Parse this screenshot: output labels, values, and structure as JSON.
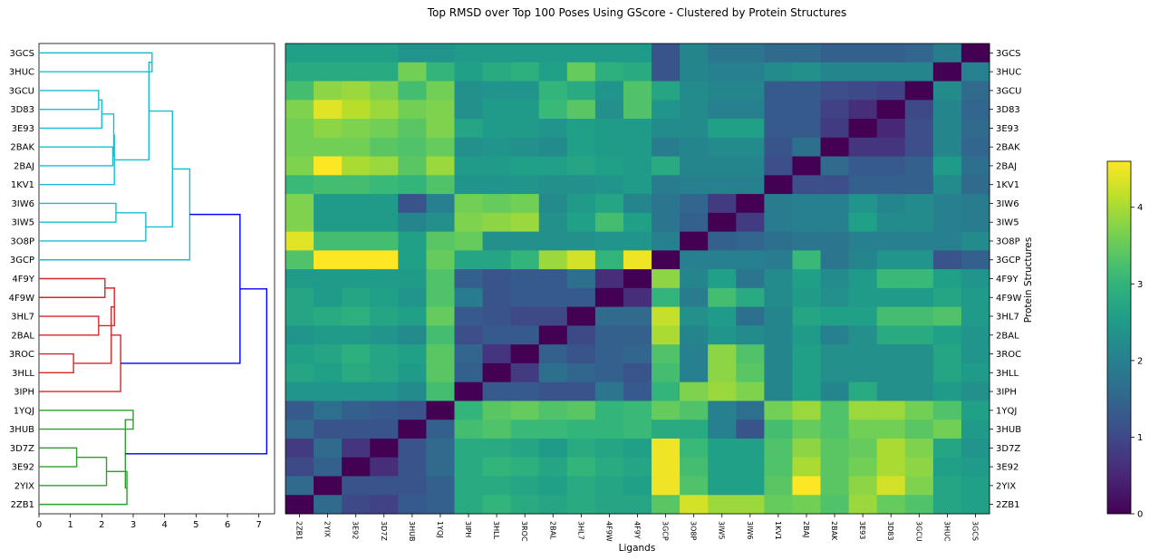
{
  "chart_data": [
    {
      "type": "dendrogram",
      "title": "Top RMSD over Top 100 Poses Using GScore - Clustered by Protein Structures",
      "leaves": [
        "3GCS",
        "3HUC",
        "3GCU",
        "3D83",
        "3E93",
        "2BAK",
        "2BAJ",
        "1KV1",
        "3IW6",
        "3IW5",
        "3O8P",
        "3GCP",
        "4F9Y",
        "4F9W",
        "3HL7",
        "2BAL",
        "3ROC",
        "3HLL",
        "3IPH",
        "1YQJ",
        "3HUB",
        "3D7Z",
        "3E92",
        "2YIX",
        "2ZB1"
      ],
      "x_ticks": [
        "0",
        "1",
        "2",
        "3",
        "4",
        "5",
        "6",
        "7"
      ],
      "xlim": [
        0,
        7.5
      ],
      "colors": {
        "cluster1": "#17becf",
        "cluster2": "#d62728",
        "cluster3": "#2ca02c",
        "root": "#0000ff"
      },
      "links": [
        {
          "a": 0,
          "b": 1,
          "h": 3.6,
          "c": "cluster1"
        },
        {
          "a": 2,
          "b": 3,
          "h": 1.9,
          "c": "cluster1"
        },
        {
          "a": "n2",
          "b": 4,
          "h": 2.0,
          "c": "cluster1"
        },
        {
          "a": 5,
          "b": 6,
          "h": 2.35,
          "c": "cluster1"
        },
        {
          "a": "n3",
          "b": "n4",
          "h": 2.38,
          "c": "cluster1"
        },
        {
          "a": "n5",
          "b": 7,
          "h": 2.4,
          "c": "cluster1"
        },
        {
          "a": "n1",
          "b": "n6",
          "h": 3.5,
          "c": "cluster1"
        },
        {
          "a": 8,
          "b": 9,
          "h": 2.45,
          "c": "cluster1"
        },
        {
          "a": "n8",
          "b": 10,
          "h": 3.4,
          "c": "cluster1"
        },
        {
          "a": "n7",
          "b": "n9",
          "h": 4.25,
          "c": "cluster1"
        },
        {
          "a": "n10",
          "b": 11,
          "h": 4.8,
          "c": "cluster1"
        },
        {
          "a": 12,
          "b": 13,
          "h": 2.1,
          "c": "cluster2"
        },
        {
          "a": 14,
          "b": 15,
          "h": 1.9,
          "c": "cluster2"
        },
        {
          "a": "n12",
          "b": "n13",
          "h": 2.4,
          "c": "cluster2"
        },
        {
          "a": 16,
          "b": 17,
          "h": 1.1,
          "c": "cluster2"
        },
        {
          "a": "n14",
          "b": "n15",
          "h": 2.3,
          "c": "cluster2"
        },
        {
          "a": "n16",
          "b": 18,
          "h": 2.6,
          "c": "cluster2"
        },
        {
          "a": "n11",
          "b": "n17",
          "h": 6.4,
          "c": "root"
        },
        {
          "a": 19,
          "b": 20,
          "h": 3.0,
          "c": "cluster3"
        },
        {
          "a": 21,
          "b": 22,
          "h": 1.2,
          "c": "cluster3"
        },
        {
          "a": "n20",
          "b": 23,
          "h": 2.15,
          "c": "cluster3"
        },
        {
          "a": "n21",
          "b": 24,
          "h": 2.8,
          "c": "cluster3"
        },
        {
          "a": "n19",
          "b": "n22",
          "h": 2.75,
          "c": "cluster3"
        },
        {
          "a": "n18",
          "b": "n23",
          "h": 7.25,
          "c": "root"
        }
      ]
    },
    {
      "type": "heatmap",
      "ylabel": "Protein Structures",
      "xlabel": "Ligands",
      "y_categories": [
        "3GCS",
        "3HUC",
        "3GCU",
        "3D83",
        "3E93",
        "2BAK",
        "2BAJ",
        "1KV1",
        "3IW6",
        "3IW5",
        "3O8P",
        "3GCP",
        "4F9Y",
        "4F9W",
        "3HL7",
        "2BAL",
        "3ROC",
        "3HLL",
        "3IPH",
        "1YQJ",
        "3HUB",
        "3D7Z",
        "3E92",
        "2YIX",
        "2ZB1"
      ],
      "x_categories": [
        "2ZB1",
        "2YIX",
        "3E92",
        "3D7Z",
        "3HUB",
        "1YQJ",
        "3IPH",
        "3HLL",
        "3ROC",
        "2BAL",
        "3HL7",
        "4F9W",
        "4F9Y",
        "3GCP",
        "3O8P",
        "3IW5",
        "3IW6",
        "1KV1",
        "2BAJ",
        "2BAK",
        "3E93",
        "3D83",
        "3GCU",
        "3HUC",
        "3GCS"
      ],
      "values": [
        [
          2.6,
          2.6,
          2.6,
          2.6,
          2.4,
          2.4,
          2.5,
          2.5,
          2.5,
          2.5,
          2.5,
          2.5,
          2.5,
          1.2,
          2.1,
          1.8,
          1.8,
          1.6,
          1.6,
          1.4,
          1.4,
          1.4,
          1.5,
          1.9,
          0.0
        ],
        [
          2.8,
          2.8,
          2.8,
          2.8,
          3.6,
          3.0,
          2.6,
          2.8,
          2.9,
          2.6,
          3.5,
          2.9,
          2.8,
          1.2,
          2.1,
          2.0,
          2.0,
          2.2,
          2.3,
          2.1,
          2.1,
          2.1,
          2.1,
          0.0,
          2.0
        ],
        [
          3.2,
          3.8,
          3.9,
          3.7,
          3.2,
          3.6,
          2.3,
          2.4,
          2.4,
          3.0,
          2.8,
          2.4,
          3.3,
          2.7,
          2.2,
          2.1,
          2.1,
          1.3,
          1.3,
          1.1,
          1.0,
          0.9,
          0.0,
          2.2,
          1.6
        ],
        [
          3.7,
          4.4,
          4.1,
          3.9,
          3.6,
          3.7,
          2.3,
          2.5,
          2.5,
          3.1,
          3.4,
          2.3,
          3.3,
          2.4,
          2.2,
          2.0,
          2.0,
          1.3,
          1.3,
          0.9,
          0.6,
          0.0,
          1.0,
          2.1,
          1.5
        ],
        [
          3.6,
          3.8,
          3.7,
          3.6,
          3.4,
          3.7,
          2.7,
          2.5,
          2.5,
          2.4,
          2.6,
          2.5,
          2.5,
          2.2,
          2.2,
          2.6,
          2.6,
          1.3,
          1.3,
          0.8,
          0.0,
          0.5,
          1.1,
          2.1,
          1.6
        ],
        [
          3.6,
          3.6,
          3.6,
          3.4,
          3.3,
          3.5,
          2.3,
          2.4,
          2.3,
          2.2,
          2.6,
          2.5,
          2.5,
          1.9,
          2.1,
          2.2,
          2.2,
          1.2,
          1.7,
          0.0,
          0.7,
          0.7,
          1.1,
          2.1,
          1.5
        ],
        [
          3.7,
          4.6,
          4.0,
          3.9,
          3.4,
          3.9,
          2.5,
          2.5,
          2.6,
          2.6,
          2.7,
          2.6,
          2.5,
          2.8,
          2.1,
          2.1,
          2.1,
          1.1,
          0.0,
          1.6,
          1.3,
          1.3,
          1.4,
          2.5,
          1.7
        ],
        [
          3.1,
          3.2,
          3.2,
          3.1,
          3.0,
          3.3,
          2.4,
          2.4,
          2.4,
          2.3,
          2.3,
          2.4,
          2.5,
          1.9,
          2.0,
          2.0,
          2.0,
          0.0,
          1.1,
          1.1,
          1.4,
          1.4,
          1.4,
          2.2,
          1.6
        ],
        [
          3.7,
          2.5,
          2.5,
          2.5,
          1.2,
          2.0,
          3.6,
          3.5,
          3.6,
          2.2,
          2.5,
          2.7,
          2.1,
          1.8,
          1.5,
          0.8,
          0.0,
          1.9,
          2.0,
          2.0,
          2.4,
          2.1,
          2.2,
          2.0,
          1.9
        ],
        [
          3.7,
          2.5,
          2.5,
          2.5,
          2.1,
          2.3,
          3.7,
          3.8,
          3.9,
          2.3,
          2.6,
          3.2,
          2.6,
          1.8,
          1.4,
          0.0,
          0.8,
          1.9,
          2.0,
          2.0,
          2.6,
          2.2,
          2.2,
          2.0,
          1.9
        ],
        [
          4.4,
          3.2,
          3.2,
          3.2,
          2.6,
          3.4,
          3.5,
          2.3,
          2.3,
          2.3,
          2.3,
          2.4,
          2.4,
          2.0,
          0.0,
          1.4,
          1.5,
          1.7,
          1.8,
          1.8,
          2.0,
          2.0,
          2.0,
          2.0,
          2.2
        ],
        [
          3.3,
          4.6,
          4.6,
          4.6,
          2.6,
          3.5,
          2.7,
          2.7,
          3.0,
          3.9,
          4.3,
          3.0,
          4.5,
          0.0,
          2.0,
          2.0,
          2.0,
          1.9,
          3.1,
          1.8,
          2.1,
          2.4,
          2.4,
          1.2,
          1.4
        ],
        [
          2.5,
          2.5,
          2.5,
          2.5,
          2.5,
          3.3,
          1.4,
          1.2,
          1.3,
          1.3,
          1.7,
          0.6,
          0.0,
          3.8,
          2.1,
          2.6,
          1.8,
          2.2,
          2.6,
          2.2,
          2.5,
          3.1,
          3.1,
          2.6,
          2.4
        ],
        [
          2.7,
          2.5,
          2.7,
          2.6,
          2.4,
          3.3,
          1.9,
          1.2,
          1.3,
          1.3,
          1.3,
          0.0,
          0.6,
          3.0,
          1.9,
          3.2,
          2.8,
          2.2,
          2.5,
          2.3,
          2.5,
          2.5,
          2.5,
          2.7,
          2.5
        ],
        [
          2.7,
          2.8,
          2.9,
          2.7,
          2.6,
          3.5,
          1.3,
          1.2,
          1.0,
          1.0,
          0.0,
          1.6,
          1.6,
          4.2,
          2.3,
          2.5,
          1.7,
          2.1,
          2.7,
          2.6,
          2.6,
          3.2,
          3.2,
          3.3,
          2.5
        ],
        [
          2.4,
          2.5,
          2.5,
          2.4,
          2.2,
          3.2,
          1.1,
          1.3,
          1.3,
          0.0,
          1.0,
          1.4,
          1.4,
          4.0,
          2.1,
          2.4,
          2.2,
          2.1,
          2.5,
          2.0,
          2.3,
          2.8,
          2.8,
          2.6,
          2.4
        ],
        [
          2.6,
          2.7,
          2.9,
          2.7,
          2.6,
          3.4,
          1.5,
          0.7,
          0.0,
          1.4,
          1.2,
          1.4,
          1.5,
          3.3,
          2.0,
          3.8,
          3.3,
          2.1,
          2.6,
          2.3,
          2.3,
          2.3,
          2.3,
          2.7,
          2.4
        ],
        [
          2.7,
          2.6,
          2.8,
          2.7,
          2.5,
          3.4,
          1.4,
          0.0,
          0.8,
          1.7,
          1.5,
          1.4,
          1.2,
          3.2,
          2.0,
          3.8,
          3.4,
          2.1,
          2.6,
          2.3,
          2.3,
          2.3,
          2.3,
          2.7,
          2.5
        ],
        [
          2.4,
          2.4,
          2.4,
          2.4,
          2.2,
          3.2,
          0.0,
          1.3,
          1.3,
          1.2,
          1.2,
          1.8,
          1.3,
          3.0,
          3.7,
          3.9,
          3.7,
          2.1,
          2.6,
          2.1,
          2.8,
          2.3,
          2.3,
          2.5,
          2.3
        ],
        [
          1.3,
          1.7,
          1.4,
          1.3,
          1.2,
          0.0,
          3.0,
          3.4,
          3.5,
          3.3,
          3.4,
          3.0,
          3.1,
          3.5,
          3.3,
          2.0,
          1.7,
          3.6,
          3.9,
          3.3,
          3.9,
          3.9,
          3.6,
          3.3,
          2.6
        ],
        [
          1.6,
          1.2,
          1.2,
          1.2,
          0.0,
          1.4,
          3.2,
          3.3,
          3.1,
          3.1,
          3.0,
          3.0,
          3.1,
          2.8,
          2.8,
          2.0,
          1.2,
          3.2,
          3.5,
          3.3,
          3.6,
          3.6,
          3.4,
          3.6,
          2.5
        ],
        [
          0.8,
          1.6,
          0.7,
          0.0,
          1.2,
          1.6,
          2.8,
          2.8,
          2.7,
          2.5,
          2.8,
          2.7,
          2.6,
          4.5,
          3.1,
          2.6,
          2.6,
          3.3,
          3.8,
          3.4,
          3.5,
          4.0,
          3.7,
          2.7,
          2.4
        ],
        [
          1.0,
          1.4,
          0.0,
          0.6,
          1.2,
          1.6,
          2.8,
          3.0,
          2.9,
          2.7,
          3.0,
          2.8,
          2.7,
          4.5,
          3.2,
          2.6,
          2.6,
          3.3,
          4.0,
          3.4,
          3.6,
          4.0,
          3.8,
          2.6,
          2.5
        ],
        [
          1.6,
          0.0,
          1.2,
          1.2,
          1.2,
          1.4,
          2.8,
          2.8,
          2.7,
          2.6,
          2.8,
          2.7,
          2.6,
          4.5,
          3.3,
          2.6,
          2.6,
          3.4,
          4.6,
          3.4,
          3.8,
          4.3,
          3.7,
          2.7,
          2.6
        ],
        [
          0.0,
          1.6,
          1.0,
          0.9,
          1.3,
          1.4,
          2.8,
          3.0,
          2.8,
          2.7,
          2.8,
          2.7,
          2.7,
          3.4,
          4.3,
          3.9,
          3.9,
          3.5,
          3.6,
          3.3,
          3.9,
          3.5,
          3.3,
          2.7,
          2.6
        ]
      ],
      "colorbar": {
        "ticks": [
          "0",
          "1",
          "2",
          "3",
          "4"
        ],
        "vmin": 0,
        "vmax": 4.6
      }
    }
  ]
}
